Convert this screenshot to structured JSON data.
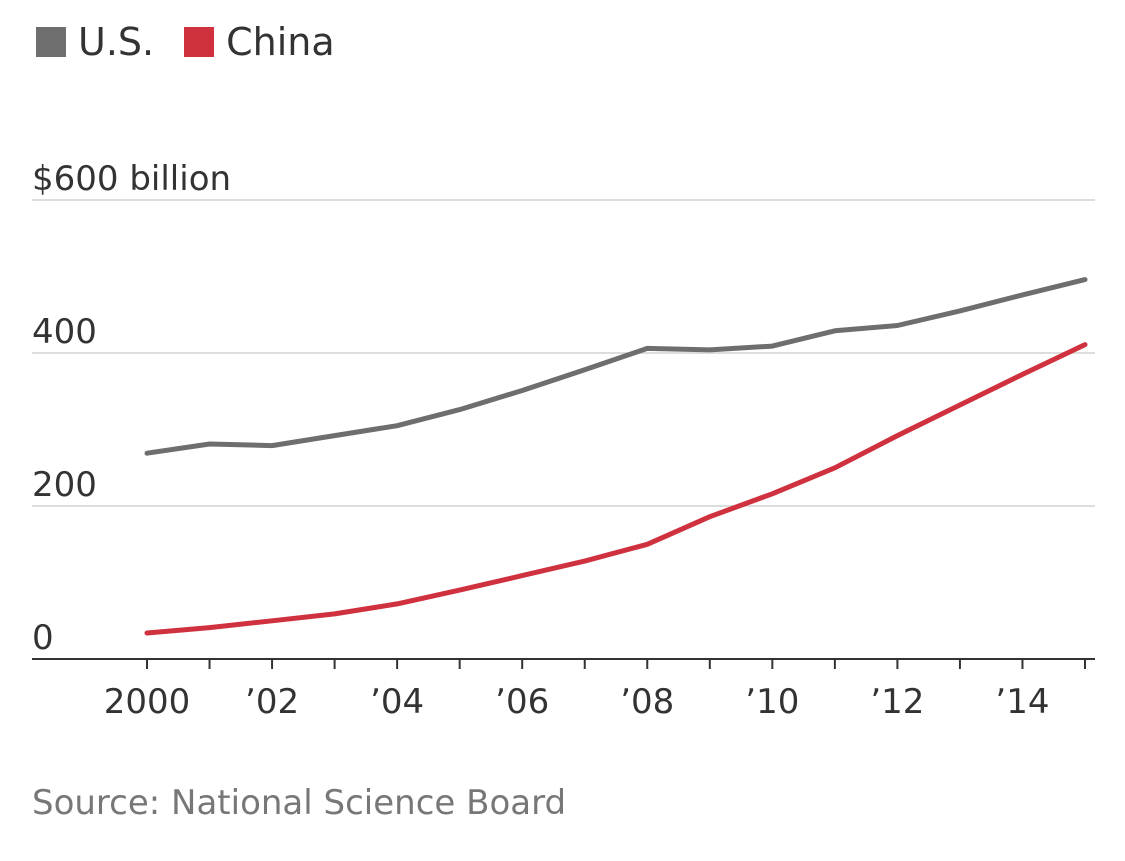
{
  "chart_data": {
    "type": "line",
    "title": "",
    "xlabel": "",
    "ylabel": "",
    "x": [
      2000,
      2001,
      2002,
      2003,
      2004,
      2005,
      2006,
      2007,
      2008,
      2009,
      2010,
      2011,
      2012,
      2013,
      2014,
      2015
    ],
    "x_tick_values": [
      2000,
      2002,
      2004,
      2006,
      2008,
      2010,
      2012,
      2014
    ],
    "x_tick_labels": [
      "2000",
      "’02",
      "’04",
      "’06",
      "’08",
      "’10",
      "’12",
      "’14"
    ],
    "y_ticks": [
      0,
      200,
      400,
      600
    ],
    "y_tick_labels": [
      "0",
      "200",
      "400",
      "$600 billion"
    ],
    "ylim": [
      0,
      600
    ],
    "grid": "horizontal",
    "legend_position": "top-left",
    "series": [
      {
        "name": "U.S.",
        "color": "#6e6e6e",
        "values": [
          269,
          281,
          279,
          292,
          305,
          326,
          351,
          378,
          406,
          404,
          409,
          429,
          436,
          455,
          476,
          496
        ]
      },
      {
        "name": "China",
        "color": "#d0313e",
        "values": [
          34,
          41,
          50,
          59,
          72,
          90,
          109,
          128,
          150,
          186,
          216,
          250,
          292,
          332,
          372,
          411
        ]
      }
    ]
  },
  "source": "Source: National Science Board"
}
